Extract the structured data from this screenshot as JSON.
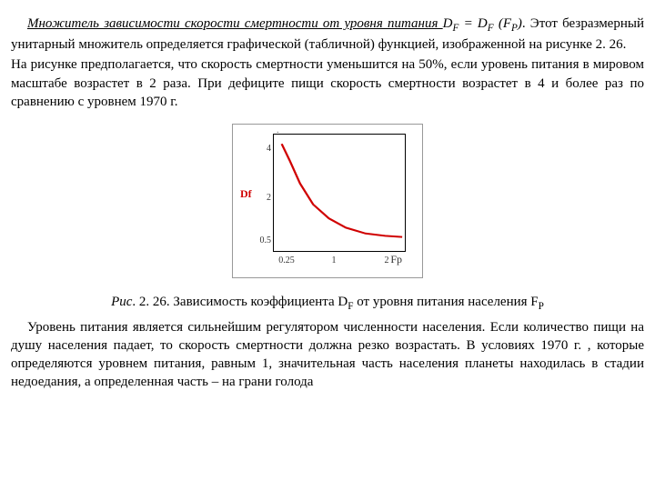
{
  "p1a": "Множитель зависимости скорости смертности от уровня питания ",
  "p1formula": "D",
  "p1sub1": "F",
  "p1eq": " = D",
  "p1sub2": "F",
  "p1paren": " (F",
  "p1sub3": "P",
  "p1close": ")",
  "p1b": ". Этот безразмерный унитарный множитель определяется графической (табличной) функцией, изображенной на рисунке 2. 26.",
  "p2": "На рисунке предполагается, что скорость смертности уменьшится на 50%, если уровень питания в мировом масштабе возрастет в 2 раза. При дефиците пищи скорость смертности возрастет в 4 и более раз по сравнению с уровнем 1970 г.",
  "caption_a": "Рис",
  "caption_b": ". 2. 26. Зависимость коэффициента D",
  "caption_sub1": "F",
  "caption_c": " от уровня питания населения F",
  "caption_sub2": "P",
  "p3": "Уровень питания является сильнейшим регулятором численности населения. Если количество пищи на душу населения падает, то скорость смертности должна резко возрастать. В условиях 1970 г. , которые определяются уровнем питания, равным 1, значительная часть населения планеты находилась в стадии недоедания, а определенная часть – на грани голода",
  "chart": {
    "type": "line",
    "df_label": "Df",
    "fp_label": "Fp",
    "y_ticks": [
      "4",
      "2",
      "0.5"
    ],
    "y_tick_pos_pct": [
      12,
      52,
      88
    ],
    "x_ticks": [
      "0.25",
      "1",
      "2"
    ],
    "x_tick_pos_pct": [
      14,
      46,
      86
    ],
    "curve_color": "#d00000",
    "curve_width": 1.6,
    "axis_color": "#000000",
    "curve_points": [
      [
        0.06,
        0.08
      ],
      [
        0.12,
        0.22
      ],
      [
        0.2,
        0.42
      ],
      [
        0.3,
        0.6
      ],
      [
        0.42,
        0.72
      ],
      [
        0.55,
        0.8
      ],
      [
        0.7,
        0.85
      ],
      [
        0.85,
        0.87
      ],
      [
        0.98,
        0.88
      ]
    ]
  }
}
